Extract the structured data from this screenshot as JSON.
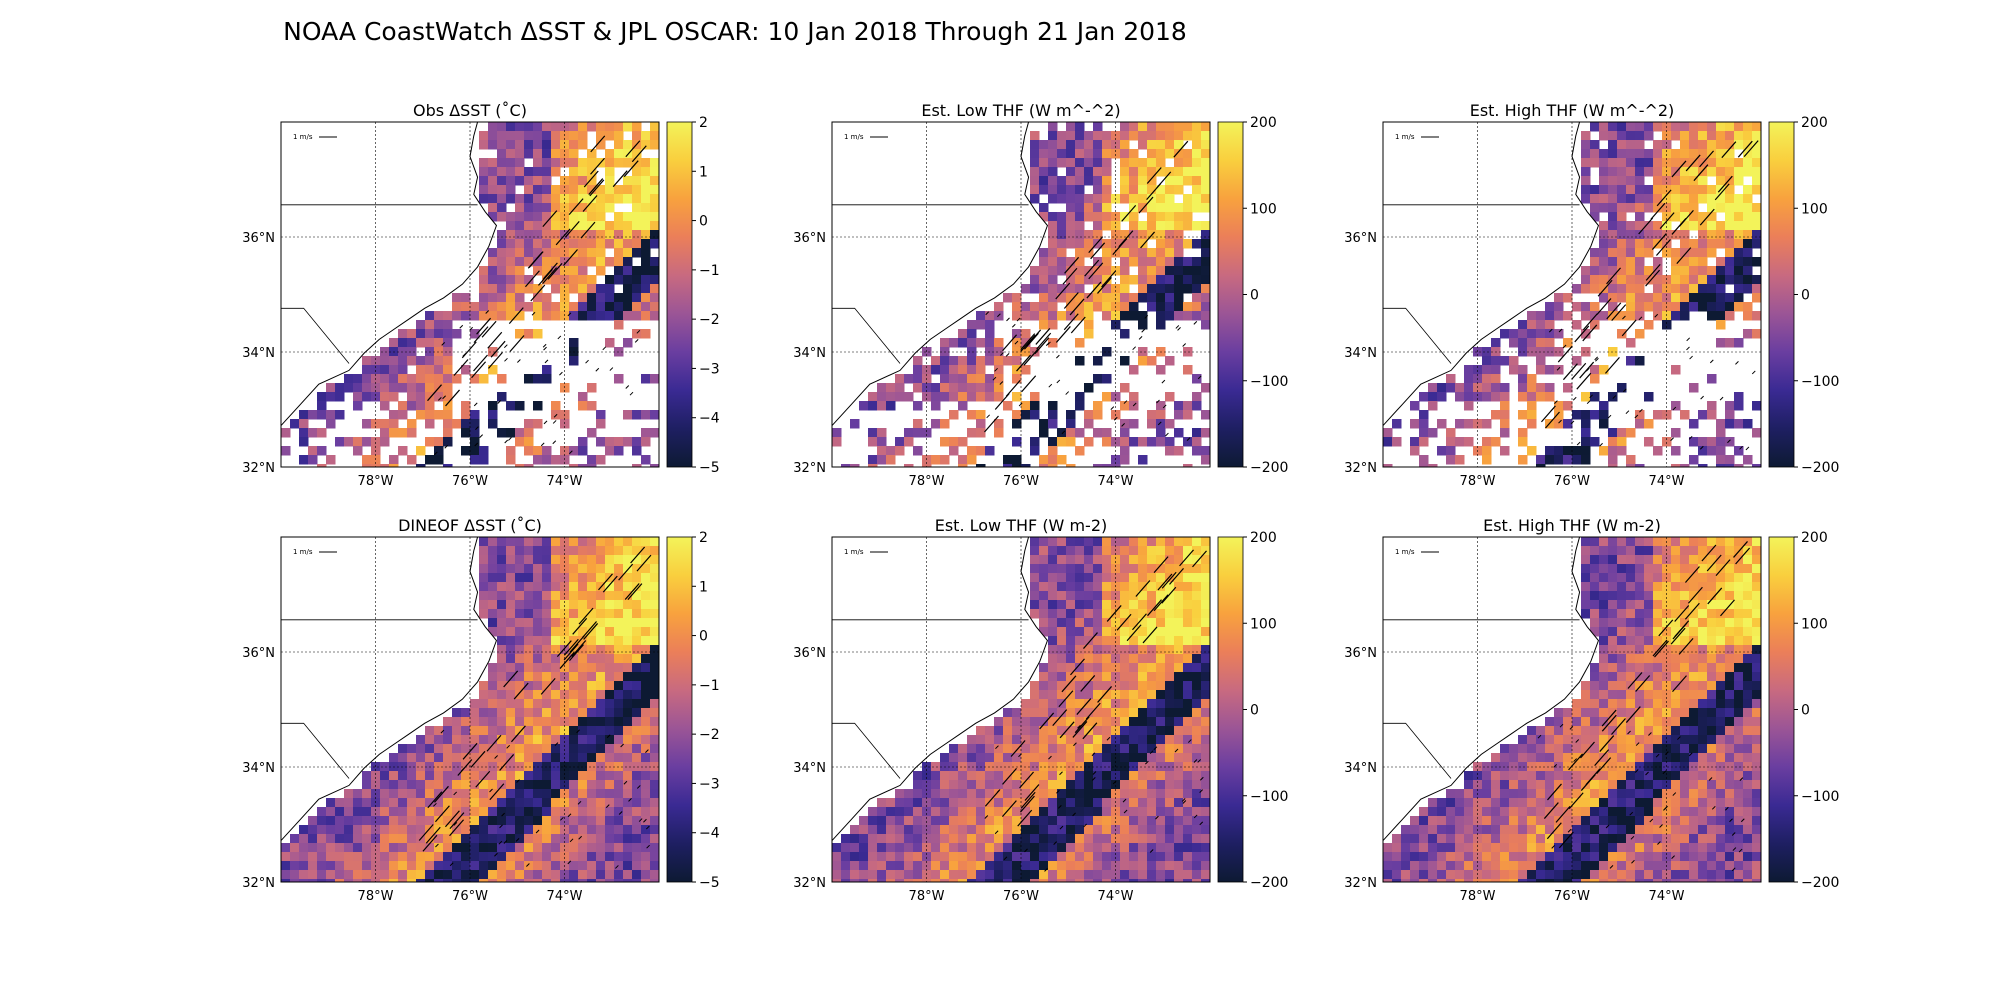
{
  "figure": {
    "suptitle": "NOAA CoastWatch ΔSST & JPL OSCAR: 10 Jan 2018 Through 21 Jan 2018"
  },
  "chart_data": [
    {
      "type": "heatmap",
      "title": "Obs ΔSST (˚C)",
      "xticks": [
        "78°W",
        "76°W",
        "74°W"
      ],
      "yticks": [
        "36°N",
        "34°N",
        "32°N"
      ],
      "lon_range": [
        -80,
        -72
      ],
      "lat_range": [
        32,
        38
      ],
      "colorbar": {
        "range": [
          -5,
          2
        ],
        "ticks": [
          "2",
          "1",
          "0",
          "−1",
          "−2",
          "−3",
          "−4",
          "−5"
        ]
      },
      "scale_label": "1 m/s",
      "field": "sparse"
    },
    {
      "type": "heatmap",
      "title": "Est. Low THF (W m^-^2)",
      "xticks": [
        "78°W",
        "76°W",
        "74°W"
      ],
      "yticks": [
        "36°N",
        "34°N",
        "32°N"
      ],
      "lon_range": [
        -80,
        -72
      ],
      "lat_range": [
        32,
        38
      ],
      "colorbar": {
        "range": [
          -200,
          200
        ],
        "ticks": [
          "200",
          "100",
          "0",
          "−100",
          "−200"
        ]
      },
      "scale_label": "1 m/s",
      "field": "sparse"
    },
    {
      "type": "heatmap",
      "title": "Est. High THF (W m^-^2)",
      "xticks": [
        "78°W",
        "76°W",
        "74°W"
      ],
      "yticks": [
        "36°N",
        "34°N",
        "32°N"
      ],
      "lon_range": [
        -80,
        -72
      ],
      "lat_range": [
        32,
        38
      ],
      "colorbar": {
        "range": [
          -200,
          200
        ],
        "ticks": [
          "200",
          "100",
          "0",
          "−100",
          "−200"
        ]
      },
      "scale_label": "1 m/s",
      "field": "sparse"
    },
    {
      "type": "heatmap",
      "title": "DINEOF ΔSST (˚C)",
      "xticks": [
        "78°W",
        "76°W",
        "74°W"
      ],
      "yticks": [
        "36°N",
        "34°N",
        "32°N"
      ],
      "lon_range": [
        -80,
        -72
      ],
      "lat_range": [
        32,
        38
      ],
      "colorbar": {
        "range": [
          -5,
          2
        ],
        "ticks": [
          "2",
          "1",
          "0",
          "−1",
          "−2",
          "−3",
          "−4",
          "−5"
        ]
      },
      "scale_label": "1 m/s",
      "field": "full"
    },
    {
      "type": "heatmap",
      "title": "Est. Low THF (W m-2)",
      "xticks": [
        "78°W",
        "76°W",
        "74°W"
      ],
      "yticks": [
        "36°N",
        "34°N",
        "32°N"
      ],
      "lon_range": [
        -80,
        -72
      ],
      "lat_range": [
        32,
        38
      ],
      "colorbar": {
        "range": [
          -200,
          200
        ],
        "ticks": [
          "200",
          "100",
          "0",
          "−100",
          "−200"
        ]
      },
      "scale_label": "1 m/s",
      "field": "full"
    },
    {
      "type": "heatmap",
      "title": "Est. High THF (W m-2)",
      "xticks": [
        "78°W",
        "76°W",
        "74°W"
      ],
      "yticks": [
        "36°N",
        "34°N",
        "32°N"
      ],
      "lon_range": [
        -80,
        -72
      ],
      "lat_range": [
        32,
        38
      ],
      "colorbar": {
        "range": [
          -200,
          200
        ],
        "ticks": [
          "200",
          "100",
          "0",
          "−100",
          "−200"
        ]
      },
      "scale_label": "1 m/s",
      "field": "full"
    }
  ],
  "colors": {
    "colormap": [
      "#0d1a33",
      "#1e1f62",
      "#3a2a93",
      "#6a3ea0",
      "#9b5596",
      "#c86a80",
      "#eb7f59",
      "#f8a23e",
      "#f9cf3e",
      "#f3f35a"
    ],
    "background": "#ffffff",
    "land": "#ffffff",
    "coastline": "#000000"
  }
}
